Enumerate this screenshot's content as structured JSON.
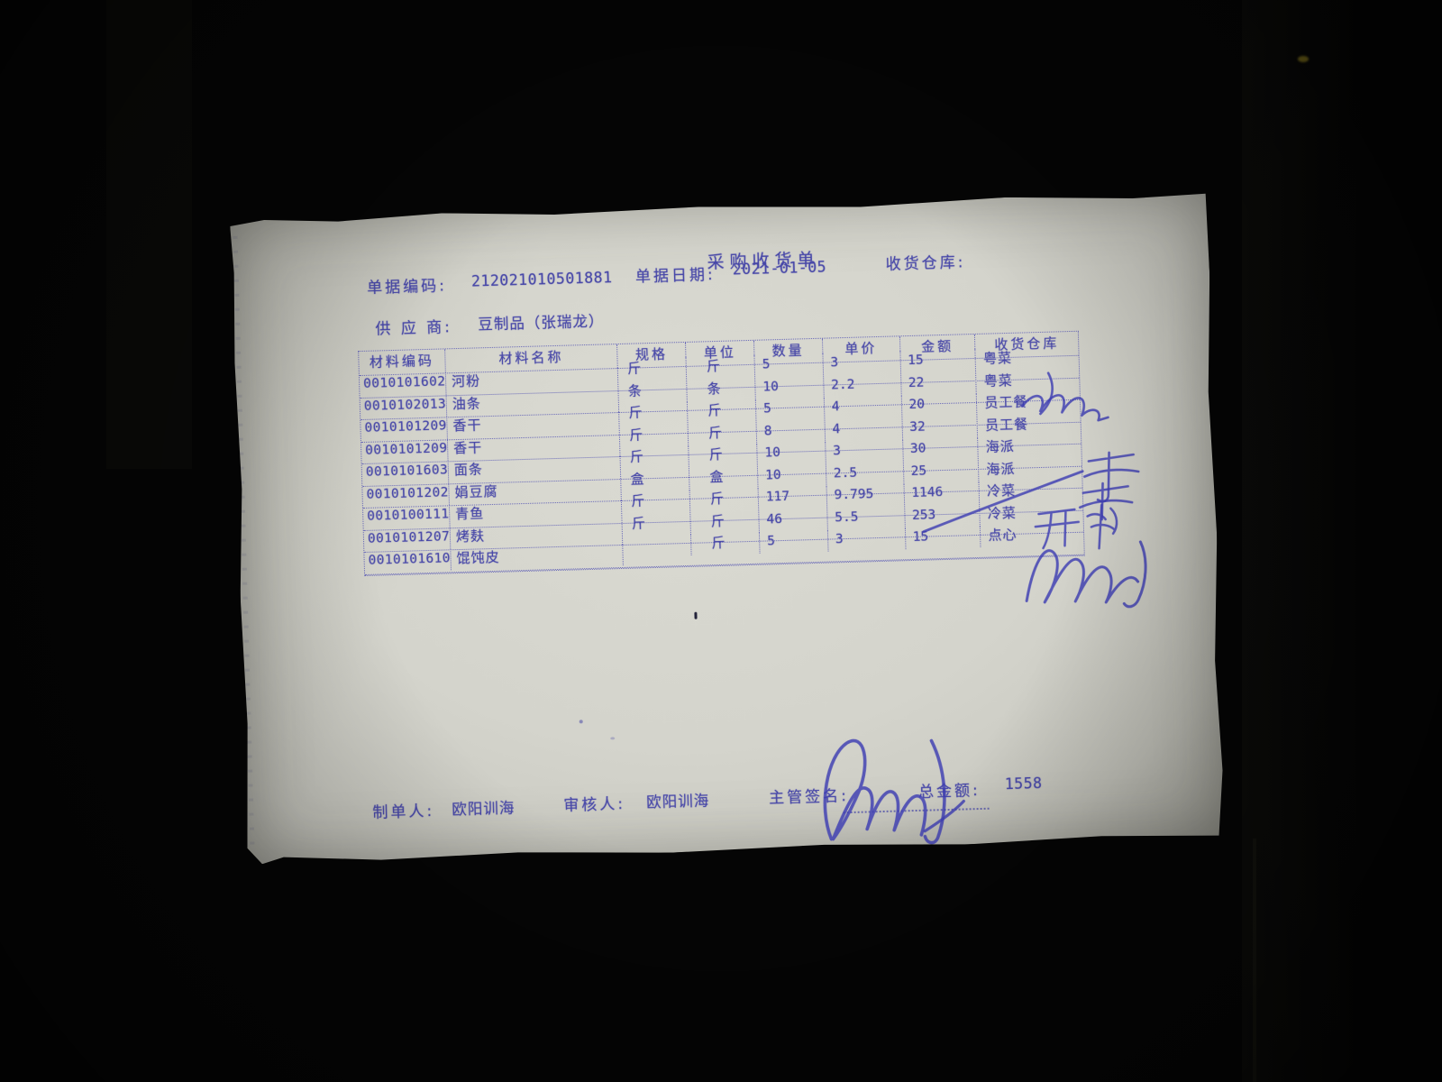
{
  "document": {
    "title": "采购收货单",
    "fields": {
      "code_label": "单据编码:",
      "code_value": "212021010501881",
      "date_label": "单据日期:",
      "date_value": "2021-01-05",
      "warehouse_label": "收货仓库:",
      "supplier_label": "供 应 商:",
      "supplier_value": "豆制品（张瑞龙）"
    },
    "table": {
      "headers": [
        "材料编码",
        "材料名称",
        "规格",
        "单位",
        "数量",
        "单价",
        "金额",
        "收货仓库"
      ],
      "rows": [
        [
          "0010101602",
          "河粉",
          "斤",
          "斤",
          "5",
          "3",
          "15",
          "粤菜"
        ],
        [
          "0010102013",
          "油条",
          "条",
          "条",
          "10",
          "2.2",
          "22",
          "粤菜"
        ],
        [
          "0010101209",
          "香干",
          "斤",
          "斤",
          "5",
          "4",
          "20",
          "员工餐"
        ],
        [
          "0010101209",
          "香干",
          "斤",
          "斤",
          "8",
          "4",
          "32",
          "员工餐"
        ],
        [
          "0010101603",
          "面条",
          "斤",
          "斤",
          "10",
          "3",
          "30",
          "海派"
        ],
        [
          "0010101202",
          "娟豆腐",
          "盒",
          "盒",
          "10",
          "2.5",
          "25",
          "海派"
        ],
        [
          "0010100111",
          "青鱼",
          "斤",
          "斤",
          "117",
          "9.795",
          "1146",
          "冷菜"
        ],
        [
          "0010101207",
          "烤麸",
          "斤",
          "斤",
          "46",
          "5.5",
          "253",
          "冷菜"
        ],
        [
          "0010101610",
          "馄饨皮",
          "",
          "斤",
          "5",
          "3",
          "15",
          "点心"
        ]
      ]
    },
    "footer": {
      "maker_label": "制单人:",
      "maker_value": "欧阳训海",
      "auditor_label": "审核人:",
      "auditor_value": "欧阳训海",
      "manager_sign_label": "主管签名:",
      "total_label": "总金额:",
      "total_value": "1558"
    },
    "handwriting": {
      "manager_signature": "手写签名",
      "warehouse_annotations": "手写签字与勾划"
    },
    "colors": {
      "ink": "#4747a8",
      "pen": "#3d3db2",
      "paper": "#d6d6ce",
      "background": "#060606"
    }
  }
}
